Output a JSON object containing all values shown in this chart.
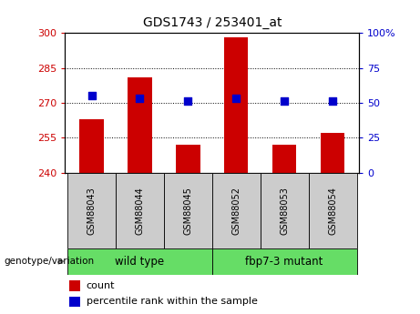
{
  "title": "GDS1743 / 253401_at",
  "samples": [
    "GSM88043",
    "GSM88044",
    "GSM88045",
    "GSM88052",
    "GSM88053",
    "GSM88054"
  ],
  "counts": [
    263,
    281,
    252,
    298,
    252,
    257
  ],
  "percentile_ranks": [
    55,
    53,
    51,
    53,
    51,
    51
  ],
  "ylim_left": [
    240,
    300
  ],
  "ylim_right": [
    0,
    100
  ],
  "yticks_left": [
    240,
    255,
    270,
    285,
    300
  ],
  "yticks_right": [
    0,
    25,
    50,
    75,
    100
  ],
  "bar_color": "#cc0000",
  "dot_color": "#0000cc",
  "group1_label": "wild type",
  "group2_label": "fbp7-3 mutant",
  "group1_indices": [
    0,
    1,
    2
  ],
  "group2_indices": [
    3,
    4,
    5
  ],
  "group_bg_color": "#66dd66",
  "sample_bg_color": "#cccccc",
  "bar_width": 0.5,
  "dot_size": 30,
  "ylabel_left_color": "#cc0000",
  "ylabel_right_color": "#0000cc",
  "grid_color": "#000000",
  "legend_count_label": "count",
  "legend_pct_label": "percentile rank within the sample",
  "xlabel": "genotype/variation"
}
